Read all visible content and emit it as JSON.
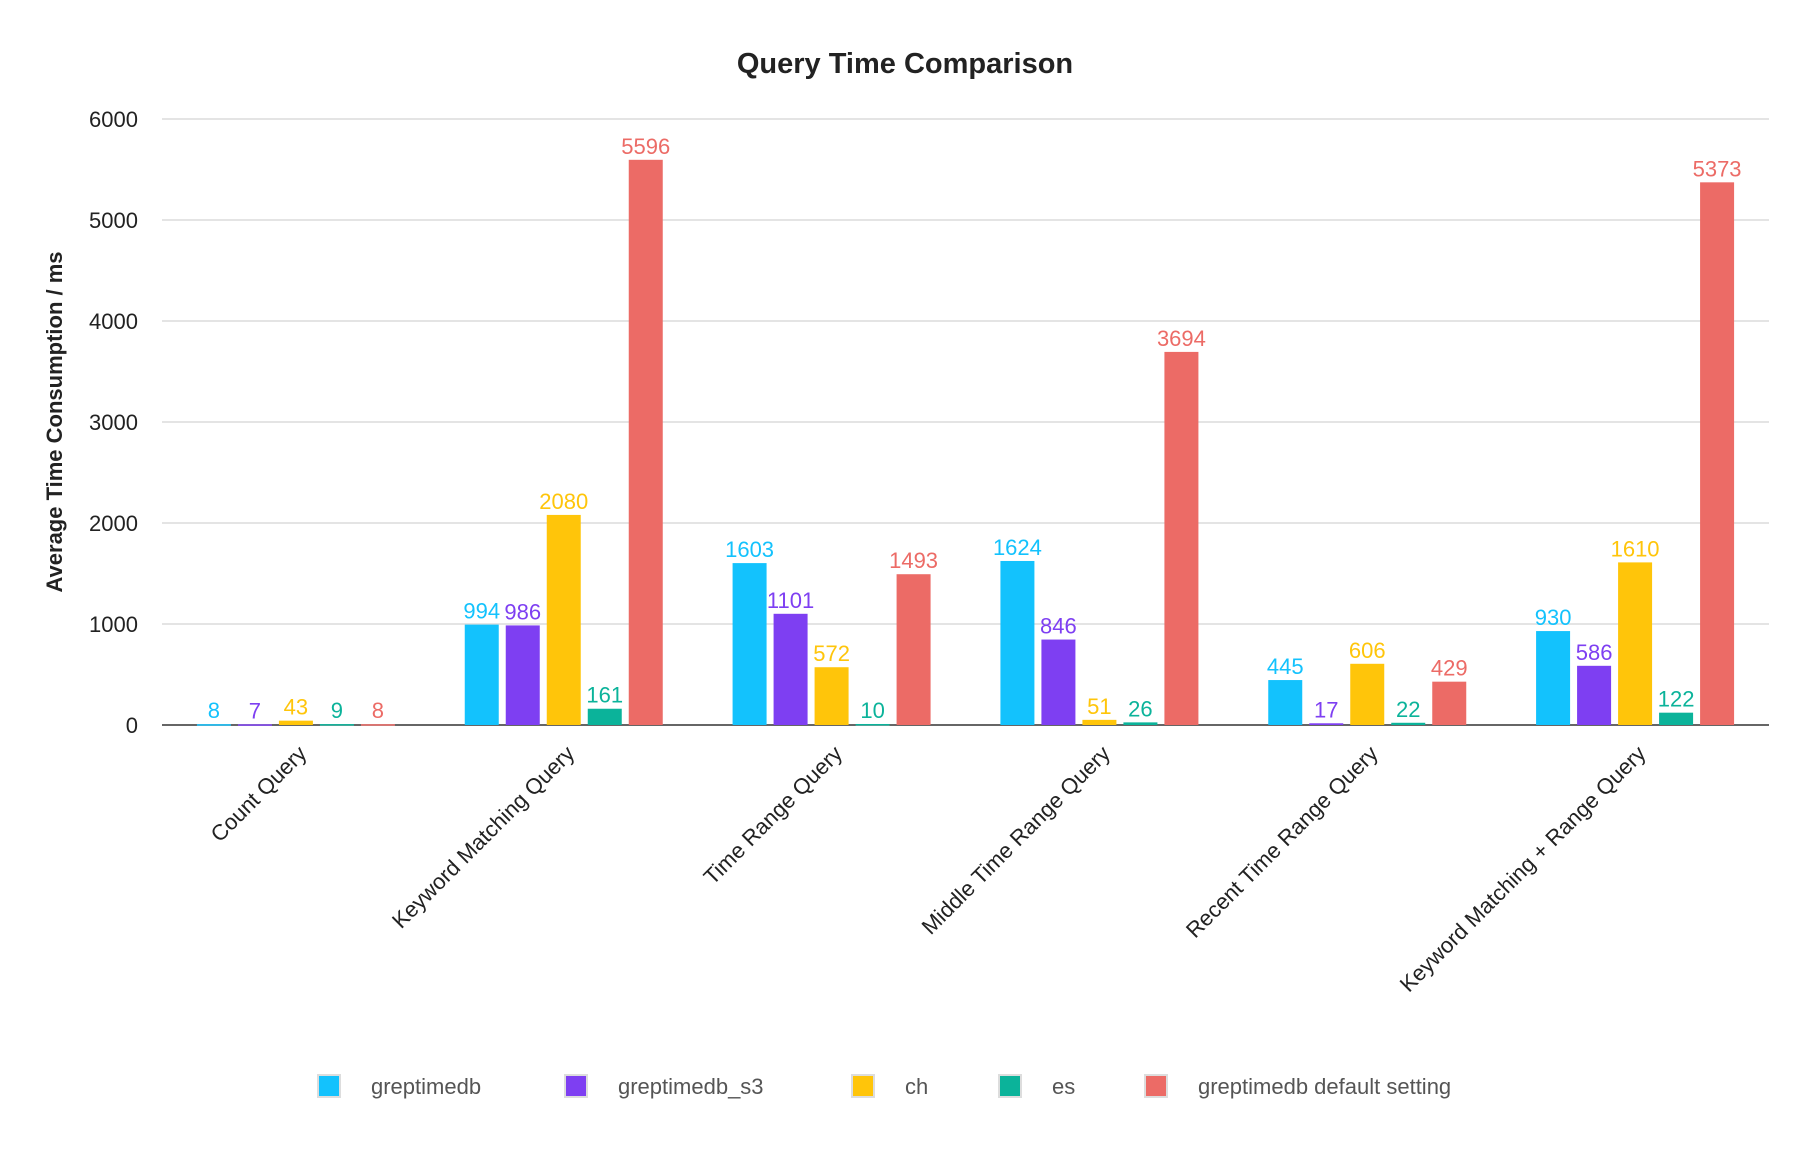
{
  "chart_data": {
    "type": "bar",
    "title": "Query Time Comparison",
    "xlabel": "",
    "ylabel": "Average Time Consumption / ms",
    "ylim": [
      0,
      6000
    ],
    "yticks": [
      "0",
      "1000",
      "2000",
      "3000",
      "4000",
      "5000",
      "6000"
    ],
    "grid": true,
    "legend_position": "bottom",
    "categories": [
      "Count Query",
      "Keyword Matching Query",
      "Time Range Query",
      "Middle Time Range Query",
      "Recent Time Range Query",
      "Keyword Matching + Range Query"
    ],
    "series": [
      {
        "name": "greptimedb",
        "color": "#13c2fd",
        "values": [
          8,
          994,
          1603,
          1624,
          445,
          930
        ]
      },
      {
        "name": "greptimedb_s3",
        "color": "#7e3ff2",
        "values": [
          7,
          986,
          1101,
          846,
          17,
          586
        ]
      },
      {
        "name": "ch",
        "color": "#ffc50a",
        "values": [
          43,
          2080,
          572,
          51,
          606,
          1610
        ]
      },
      {
        "name": "es",
        "color": "#0bb39a",
        "values": [
          9,
          161,
          10,
          26,
          22,
          122
        ]
      },
      {
        "name": "greptimedb default setting",
        "color": "#ec6b66",
        "values": [
          8,
          5596,
          1493,
          3694,
          429,
          5373
        ]
      }
    ]
  }
}
